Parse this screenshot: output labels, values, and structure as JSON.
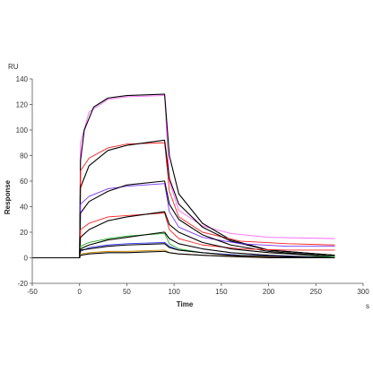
{
  "chart_data": {
    "type": "line",
    "title": "",
    "xlabel": "Time",
    "ylabel": "Response",
    "x_unit": "s",
    "y_unit": "RU",
    "xlim": [
      -50,
      300
    ],
    "ylim": [
      -20,
      140
    ],
    "x_ticks": [
      -50,
      0,
      50,
      100,
      150,
      200,
      250,
      300
    ],
    "y_ticks": [
      -20,
      0,
      20,
      40,
      60,
      80,
      100,
      120,
      140
    ],
    "grid": false,
    "legend": "none",
    "association_start_s": 0,
    "dissociation_start_s": 90,
    "end_s": 270,
    "series": [
      {
        "color": "#ff66ff",
        "values": [
          [
            -50,
            0
          ],
          [
            0,
            0
          ],
          [
            1,
            90
          ],
          [
            10,
            114
          ],
          [
            30,
            124
          ],
          [
            50,
            126
          ],
          [
            89,
            127
          ],
          [
            90,
            127
          ],
          [
            95,
            60
          ],
          [
            105,
            37
          ],
          [
            130,
            25
          ],
          [
            160,
            19
          ],
          [
            200,
            16
          ],
          [
            270,
            15
          ]
        ]
      },
      {
        "color": "#000000",
        "values": [
          [
            -50,
            0
          ],
          [
            0,
            0
          ],
          [
            1,
            76
          ],
          [
            5,
            100
          ],
          [
            15,
            118
          ],
          [
            30,
            125
          ],
          [
            50,
            127
          ],
          [
            89,
            128
          ],
          [
            90,
            128
          ],
          [
            95,
            80
          ],
          [
            105,
            50
          ],
          [
            130,
            27
          ],
          [
            160,
            14
          ],
          [
            200,
            6
          ],
          [
            270,
            2
          ]
        ]
      },
      {
        "color": "#ff2222",
        "values": [
          [
            -50,
            0
          ],
          [
            0,
            0
          ],
          [
            1,
            68
          ],
          [
            10,
            78
          ],
          [
            30,
            86
          ],
          [
            50,
            89
          ],
          [
            89,
            90
          ],
          [
            90,
            90
          ],
          [
            95,
            52
          ],
          [
            105,
            32
          ],
          [
            130,
            20
          ],
          [
            170,
            13
          ],
          [
            220,
            11
          ],
          [
            270,
            10
          ]
        ]
      },
      {
        "color": "#000000",
        "values": [
          [
            -50,
            0
          ],
          [
            0,
            0
          ],
          [
            1,
            55
          ],
          [
            10,
            72
          ],
          [
            30,
            84
          ],
          [
            50,
            88
          ],
          [
            89,
            92
          ],
          [
            90,
            92
          ],
          [
            95,
            62
          ],
          [
            105,
            42
          ],
          [
            130,
            24
          ],
          [
            160,
            13
          ],
          [
            200,
            6
          ],
          [
            270,
            2
          ]
        ]
      },
      {
        "color": "#7733ff",
        "values": [
          [
            -50,
            0
          ],
          [
            0,
            0
          ],
          [
            1,
            42
          ],
          [
            10,
            48
          ],
          [
            30,
            54
          ],
          [
            50,
            56
          ],
          [
            89,
            58
          ],
          [
            90,
            58
          ],
          [
            95,
            36
          ],
          [
            105,
            24
          ],
          [
            130,
            16
          ],
          [
            170,
            11
          ],
          [
            220,
            9
          ],
          [
            270,
            9
          ]
        ]
      },
      {
        "color": "#000000",
        "values": [
          [
            -50,
            0
          ],
          [
            0,
            0
          ],
          [
            1,
            35
          ],
          [
            10,
            44
          ],
          [
            30,
            52
          ],
          [
            50,
            57
          ],
          [
            89,
            60
          ],
          [
            90,
            60
          ],
          [
            95,
            42
          ],
          [
            105,
            30
          ],
          [
            130,
            18
          ],
          [
            160,
            10
          ],
          [
            200,
            5
          ],
          [
            270,
            1
          ]
        ]
      },
      {
        "color": "#ff2222",
        "values": [
          [
            -50,
            0
          ],
          [
            0,
            0
          ],
          [
            1,
            22
          ],
          [
            10,
            27
          ],
          [
            30,
            32
          ],
          [
            50,
            33
          ],
          [
            89,
            35
          ],
          [
            90,
            35
          ],
          [
            95,
            22
          ],
          [
            105,
            15
          ],
          [
            130,
            10
          ],
          [
            170,
            7
          ],
          [
            220,
            6
          ],
          [
            270,
            6
          ]
        ]
      },
      {
        "color": "#000000",
        "values": [
          [
            -50,
            0
          ],
          [
            0,
            0
          ],
          [
            1,
            16
          ],
          [
            10,
            22
          ],
          [
            30,
            29
          ],
          [
            50,
            32
          ],
          [
            89,
            36
          ],
          [
            90,
            36
          ],
          [
            95,
            26
          ],
          [
            105,
            20
          ],
          [
            130,
            12
          ],
          [
            160,
            7
          ],
          [
            200,
            4
          ],
          [
            270,
            1
          ]
        ]
      },
      {
        "color": "#22aa22",
        "values": [
          [
            -50,
            0
          ],
          [
            0,
            0
          ],
          [
            1,
            9
          ],
          [
            10,
            12
          ],
          [
            30,
            15
          ],
          [
            50,
            17
          ],
          [
            89,
            19
          ],
          [
            90,
            19
          ],
          [
            95,
            11
          ],
          [
            105,
            7
          ],
          [
            130,
            4
          ],
          [
            170,
            2
          ],
          [
            220,
            1
          ],
          [
            270,
            1
          ]
        ]
      },
      {
        "color": "#000000",
        "values": [
          [
            -50,
            0
          ],
          [
            0,
            0
          ],
          [
            1,
            7
          ],
          [
            10,
            10
          ],
          [
            30,
            14
          ],
          [
            50,
            16
          ],
          [
            89,
            20
          ],
          [
            90,
            20
          ],
          [
            95,
            15
          ],
          [
            105,
            11
          ],
          [
            130,
            7
          ],
          [
            160,
            4
          ],
          [
            200,
            2
          ],
          [
            270,
            0
          ]
        ]
      },
      {
        "color": "#3333ff",
        "values": [
          [
            -50,
            0
          ],
          [
            0,
            0
          ],
          [
            1,
            5
          ],
          [
            10,
            8
          ],
          [
            30,
            10
          ],
          [
            50,
            11
          ],
          [
            89,
            12
          ],
          [
            90,
            12
          ],
          [
            95,
            9
          ],
          [
            105,
            6
          ],
          [
            130,
            4
          ],
          [
            170,
            2
          ],
          [
            220,
            1
          ],
          [
            270,
            0
          ]
        ]
      },
      {
        "color": "#000000",
        "values": [
          [
            -50,
            0
          ],
          [
            0,
            0
          ],
          [
            1,
            6
          ],
          [
            10,
            7
          ],
          [
            30,
            9
          ],
          [
            50,
            10
          ],
          [
            89,
            11
          ],
          [
            90,
            11
          ],
          [
            95,
            8
          ],
          [
            105,
            6
          ],
          [
            130,
            4
          ],
          [
            160,
            2
          ],
          [
            200,
            1
          ],
          [
            270,
            0
          ]
        ]
      },
      {
        "color": "#cc8800",
        "values": [
          [
            -50,
            0
          ],
          [
            0,
            0
          ],
          [
            1,
            3
          ],
          [
            10,
            4
          ],
          [
            30,
            5
          ],
          [
            50,
            5
          ],
          [
            89,
            6
          ],
          [
            90,
            6
          ],
          [
            95,
            4
          ],
          [
            105,
            3
          ],
          [
            130,
            2
          ],
          [
            170,
            1
          ],
          [
            220,
            0
          ],
          [
            270,
            0
          ]
        ]
      },
      {
        "color": "#000000",
        "values": [
          [
            -50,
            0
          ],
          [
            0,
            0
          ],
          [
            1,
            2
          ],
          [
            10,
            3
          ],
          [
            30,
            4
          ],
          [
            50,
            4
          ],
          [
            89,
            5
          ],
          [
            90,
            5
          ],
          [
            95,
            4
          ],
          [
            105,
            3
          ],
          [
            130,
            2
          ],
          [
            160,
            1
          ],
          [
            200,
            0
          ],
          [
            270,
            0
          ]
        ]
      }
    ]
  }
}
